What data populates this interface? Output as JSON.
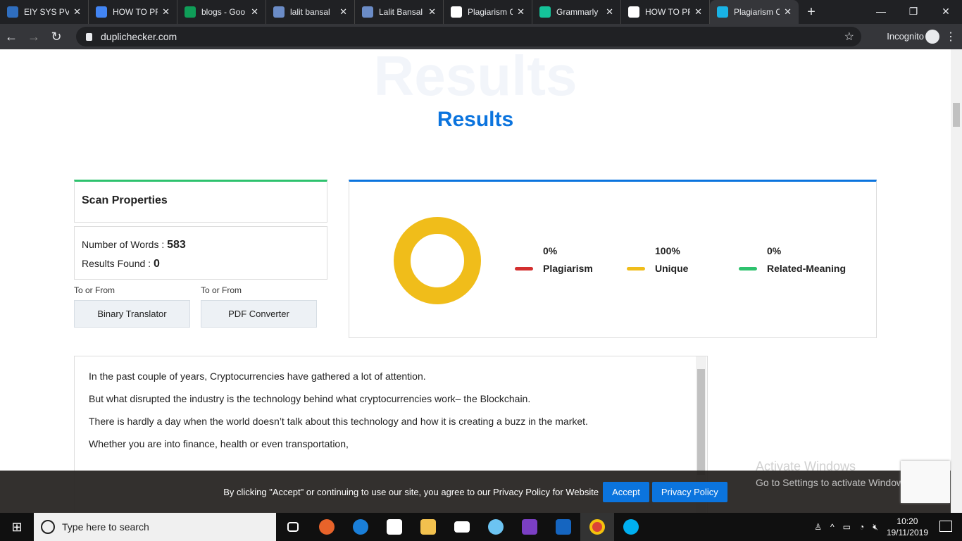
{
  "browser": {
    "tabs": [
      {
        "label": "EIY SYS PVT",
        "icon": "24-icon",
        "color": "#2f6ebf"
      },
      {
        "label": "HOW TO PR",
        "icon": "docs-icon",
        "color": "#4285f4"
      },
      {
        "label": "blogs - Goo",
        "icon": "drive-icon",
        "color": "#0f9d58"
      },
      {
        "label": "lalit bansal",
        "icon": "user-icon",
        "color": "#6b8cc7"
      },
      {
        "label": "Lalit Bansal",
        "icon": "user-icon",
        "color": "#6b8cc7"
      },
      {
        "label": "Plagiarism C",
        "icon": "sst-icon",
        "color": "#ffffff"
      },
      {
        "label": "Grammarly",
        "icon": "grammarly-icon",
        "color": "#15c39a"
      },
      {
        "label": "HOW TO PR",
        "icon": "google-icon",
        "color": "#ffffff"
      },
      {
        "label": "Plagiarism C",
        "icon": "duplichecker-icon",
        "color": "#19b3e6"
      }
    ],
    "url": "duplichecker.com",
    "mode": "Incognito"
  },
  "page": {
    "watermark": "Results",
    "title": "Results",
    "scan": {
      "heading": "Scan Properties",
      "words_label": "Number of Words :",
      "words": "583",
      "results_label": "Results Found :",
      "results": "0"
    },
    "links": [
      {
        "label": "To or From",
        "button": "Binary Translator"
      },
      {
        "label": "To or From",
        "button": "PDF Converter"
      }
    ],
    "legend": [
      {
        "pct": "0%",
        "name": "Plagiarism",
        "color": "#d32f2f"
      },
      {
        "pct": "100%",
        "name": "Unique",
        "color": "#f0bd1a"
      },
      {
        "pct": "0%",
        "name": "Related-Meaning",
        "color": "#2ec26e"
      }
    ],
    "donut": {
      "plagiarism": 0,
      "unique": 100,
      "related": 0
    },
    "text": [
      "In the past couple of years, Cryptocurrencies have gathered a lot of attention.",
      "But what disrupted the industry is the technology behind what cryptocurrencies work– the Blockchain.",
      "There is hardly a day when the world doesn’t talk about this technology and how it is creating a buzz in the market.",
      "Whether you are into finance, health or even transportation,"
    ]
  },
  "cookie": {
    "message": "By clicking \"Accept\" or continuing to use our site, you agree to our Privacy Policy for Website",
    "accept": "Accept",
    "policy": "Privacy Policy"
  },
  "windows": {
    "activate": "Activate Windows",
    "activate_sub": "Go to Settings to activate Windows.",
    "search_placeholder": "Type here to search",
    "time": "10:20",
    "date": "19/11/2019"
  }
}
